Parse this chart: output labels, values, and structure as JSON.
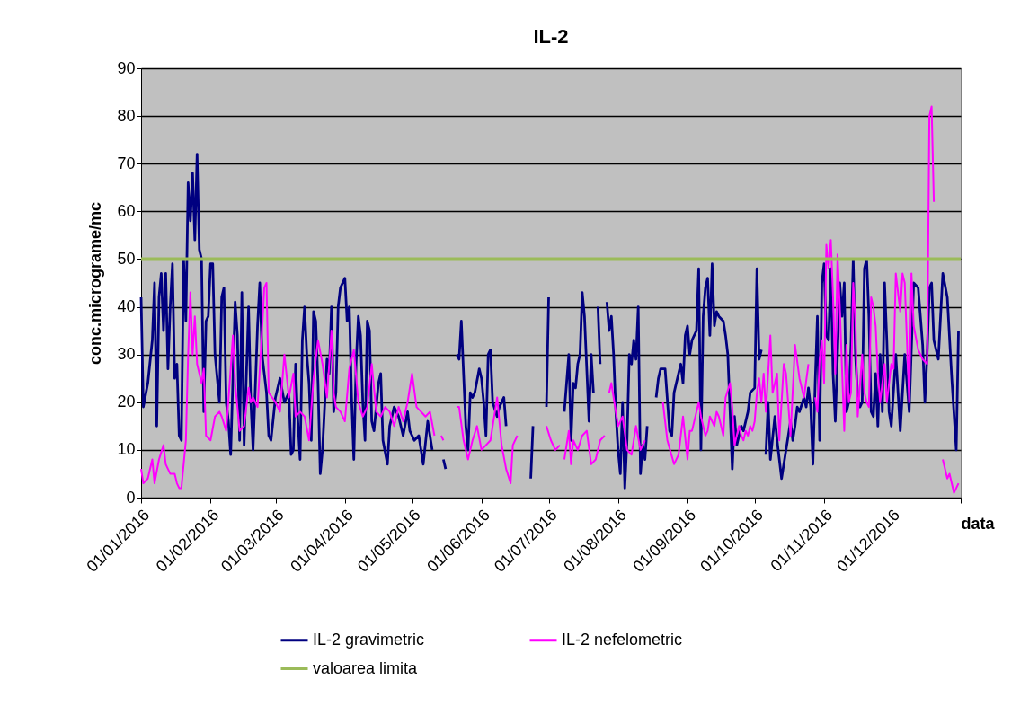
{
  "chart_data": {
    "type": "line",
    "title": "IL-2",
    "xlabel": "data",
    "ylabel": "conc.micrograme/mc",
    "xlim": [
      "2016-01-01",
      "2017-01-01"
    ],
    "xticks": [
      {
        "value": "2016-01-01",
        "label": "01/01/2016"
      },
      {
        "value": "2016-02-01",
        "label": "01/02/2016"
      },
      {
        "value": "2016-03-01",
        "label": "01/03/2016"
      },
      {
        "value": "2016-04-01",
        "label": "01/04/2016"
      },
      {
        "value": "2016-05-01",
        "label": "01/05/2016"
      },
      {
        "value": "2016-06-01",
        "label": "01/06/2016"
      },
      {
        "value": "2016-07-01",
        "label": "01/07/2016"
      },
      {
        "value": "2016-08-01",
        "label": "01/08/2016"
      },
      {
        "value": "2016-09-01",
        "label": "01/09/2016"
      },
      {
        "value": "2016-10-01",
        "label": "01/10/2016"
      },
      {
        "value": "2016-11-01",
        "label": "01/11/2016"
      },
      {
        "value": "2016-12-01",
        "label": "01/12/2016"
      },
      {
        "value": "2017-01-01",
        "label": null
      }
    ],
    "ylim": [
      0,
      90
    ],
    "yticks": [
      0,
      10,
      20,
      30,
      40,
      50,
      60,
      70,
      80,
      90
    ],
    "grid": "y",
    "legend": "bottom",
    "marker": "none",
    "line_style": "solid",
    "ref_lines": [
      {
        "axis": "y",
        "value": 50,
        "label": "valoarea limita",
        "color": "#9bbb59"
      }
    ],
    "series": [
      {
        "name": "IL-2 gravimetric",
        "color": "#000080",
        "x": [
          "2016-01-01",
          "2016-01-02",
          "2016-01-04",
          "2016-01-06",
          "2016-01-07",
          "2016-01-08",
          "2016-01-09",
          "2016-01-10",
          "2016-01-11",
          "2016-01-12",
          "2016-01-13",
          "2016-01-14",
          "2016-01-15",
          "2016-01-16",
          "2016-01-17",
          "2016-01-18",
          "2016-01-19",
          "2016-01-20",
          "2016-01-21",
          "2016-01-22",
          "2016-01-23",
          "2016-01-24",
          "2016-01-25",
          "2016-01-26",
          "2016-01-27",
          "2016-01-28",
          "2016-01-29",
          "2016-01-30",
          "2016-01-31",
          "2016-02-01",
          "2016-02-02",
          "2016-02-03",
          "2016-02-05",
          "2016-02-06",
          "2016-02-07",
          "2016-02-08",
          "2016-02-09",
          "2016-02-10",
          "2016-02-12",
          "2016-02-13",
          "2016-02-14",
          "2016-02-15",
          "2016-02-16",
          "2016-02-18",
          "2016-02-19",
          "2016-02-20",
          "2016-02-22",
          "2016-02-23",
          "2016-02-24",
          "2016-02-26",
          "2016-02-27",
          "2016-02-28",
          "2016-03-01",
          "2016-03-03",
          "2016-03-05",
          "2016-03-07",
          "2016-03-08",
          "2016-03-09",
          "2016-03-10",
          "2016-03-11",
          "2016-03-12",
          "2016-03-13",
          "2016-03-14",
          "2016-03-15",
          "2016-03-16",
          "2016-03-17",
          "2016-03-18",
          "2016-03-19",
          "2016-03-20",
          "2016-03-21",
          "2016-03-22",
          "2016-03-24",
          "2016-03-25",
          "2016-03-26",
          "2016-03-27",
          "2016-03-28",
          "2016-03-29",
          "2016-03-30",
          "2016-04-01",
          "2016-04-02",
          "2016-04-03",
          "2016-04-04",
          "2016-04-05",
          "2016-04-06",
          "2016-04-07",
          "2016-04-08",
          "2016-04-09",
          "2016-04-10",
          "2016-04-11",
          "2016-04-12",
          "2016-04-13",
          "2016-04-14",
          "2016-04-16",
          "2016-04-17",
          "2016-04-18",
          "2016-04-20",
          "2016-04-21",
          "2016-04-23",
          "2016-04-25",
          "2016-04-27",
          "2016-04-29",
          "2016-04-30",
          "2016-05-02",
          "2016-05-04",
          "2016-05-06",
          "2016-05-08",
          "2016-05-10",
          "2016-05-12",
          "2016-05-15",
          "2016-05-16",
          "2016-05-18",
          "2016-05-21",
          "2016-05-22",
          "2016-05-23",
          "2016-05-25",
          "2016-05-26",
          "2016-05-27",
          "2016-05-28",
          "2016-05-29",
          "2016-05-31",
          "2016-06-01",
          "2016-06-02",
          "2016-06-03",
          "2016-06-04",
          "2016-06-05",
          "2016-06-06",
          "2016-06-08",
          "2016-06-09",
          "2016-06-11",
          "2016-06-12",
          "2016-06-17",
          "2016-06-23",
          "2016-06-24",
          "2016-06-27",
          "2016-06-30",
          "2016-07-01",
          "2016-07-04",
          "2016-07-08",
          "2016-07-09",
          "2016-07-10",
          "2016-07-11",
          "2016-07-12",
          "2016-07-13",
          "2016-07-14",
          "2016-07-15",
          "2016-07-16",
          "2016-07-17",
          "2016-07-19",
          "2016-07-20",
          "2016-07-21",
          "2016-07-22",
          "2016-07-23",
          "2016-07-24",
          "2016-07-26",
          "2016-07-27",
          "2016-07-28",
          "2016-07-29",
          "2016-07-30",
          "2016-07-31",
          "2016-08-01",
          "2016-08-02",
          "2016-08-03",
          "2016-08-04",
          "2016-08-05",
          "2016-08-06",
          "2016-08-07",
          "2016-08-08",
          "2016-08-09",
          "2016-08-10",
          "2016-08-11",
          "2016-08-12",
          "2016-08-13",
          "2016-08-14",
          "2016-08-16",
          "2016-08-18",
          "2016-08-19",
          "2016-08-20",
          "2016-08-22",
          "2016-08-24",
          "2016-08-25",
          "2016-08-26",
          "2016-08-28",
          "2016-08-29",
          "2016-08-30",
          "2016-08-31",
          "2016-09-01",
          "2016-09-02",
          "2016-09-03",
          "2016-09-05",
          "2016-09-06",
          "2016-09-07",
          "2016-09-08",
          "2016-09-09",
          "2016-09-10",
          "2016-09-11",
          "2016-09-12",
          "2016-09-13",
          "2016-09-14",
          "2016-09-15",
          "2016-09-17",
          "2016-09-18",
          "2016-09-19",
          "2016-09-21",
          "2016-09-22",
          "2016-09-23",
          "2016-09-25",
          "2016-09-26",
          "2016-09-28",
          "2016-09-29",
          "2016-10-01",
          "2016-10-02",
          "2016-10-03",
          "2016-10-04",
          "2016-10-05",
          "2016-10-06",
          "2016-10-07",
          "2016-10-08",
          "2016-10-10",
          "2016-10-11",
          "2016-10-13",
          "2016-10-15",
          "2016-10-17",
          "2016-10-18",
          "2016-10-19",
          "2016-10-20",
          "2016-10-21",
          "2016-10-23",
          "2016-10-24",
          "2016-10-25",
          "2016-10-26",
          "2016-10-27",
          "2016-10-28",
          "2016-10-29",
          "2016-10-30",
          "2016-10-31",
          "2016-11-01",
          "2016-11-02",
          "2016-11-03",
          "2016-11-04",
          "2016-11-05",
          "2016-11-06",
          "2016-11-07",
          "2016-11-08",
          "2016-11-09",
          "2016-11-10",
          "2016-11-11",
          "2016-11-12",
          "2016-11-13",
          "2016-11-14",
          "2016-11-15",
          "2016-11-16",
          "2016-11-17",
          "2016-11-18",
          "2016-11-19",
          "2016-11-20",
          "2016-11-21",
          "2016-11-22",
          "2016-11-23",
          "2016-11-24",
          "2016-11-25",
          "2016-11-26",
          "2016-11-27",
          "2016-11-28",
          "2016-11-29",
          "2016-11-30",
          "2016-12-01",
          "2016-12-03",
          "2016-12-05",
          "2016-12-07",
          "2016-12-09",
          "2016-12-11",
          "2016-12-13",
          "2016-12-15",
          "2016-12-16",
          "2016-12-17",
          "2016-12-18",
          "2016-12-19",
          "2016-12-20",
          "2016-12-22",
          "2016-12-24",
          "2016-12-26",
          "2016-12-28",
          "2016-12-30",
          "2016-12-31"
        ],
        "values": [
          42,
          19,
          24,
          33,
          45,
          15,
          42,
          47,
          35,
          47,
          27,
          40,
          49,
          25,
          28,
          13,
          12,
          50,
          37,
          66,
          58,
          68,
          54,
          72,
          52,
          50,
          18,
          37,
          38,
          49,
          49,
          30,
          20,
          42,
          44,
          20,
          16,
          9,
          41,
          34,
          12,
          43,
          11,
          40,
          20,
          10,
          36,
          45,
          30,
          22,
          13,
          12,
          21,
          25,
          20,
          22,
          9,
          10,
          28,
          16,
          8,
          33,
          40,
          30,
          24,
          12,
          39,
          37,
          24,
          5,
          10,
          29,
          26,
          40,
          18,
          22,
          40,
          44,
          46,
          37,
          40,
          21,
          8,
          28,
          38,
          34,
          20,
          12,
          37,
          35,
          16,
          14,
          24,
          26,
          12,
          7,
          15,
          19,
          17,
          13,
          18,
          14,
          12,
          13,
          7,
          16,
          10,
          null,
          8,
          6,
          null,
          30,
          29,
          37,
          15,
          10,
          22,
          21,
          22,
          27,
          25,
          20,
          13,
          30,
          31,
          20,
          17,
          19,
          21,
          15,
          null,
          4,
          15,
          null,
          19,
          42,
          null,
          18,
          24,
          30,
          12,
          24,
          23,
          28,
          30,
          43,
          38,
          16,
          30,
          22,
          null,
          40,
          28,
          null,
          41,
          35,
          38,
          30,
          18,
          10,
          5,
          20,
          2,
          12,
          30,
          28,
          33,
          29,
          40,
          5,
          11,
          8,
          15,
          null,
          21,
          25,
          27,
          27,
          14,
          13,
          22,
          26,
          28,
          24,
          34,
          36,
          30,
          33,
          35,
          48,
          10,
          38,
          44,
          46,
          34,
          49,
          36,
          39,
          38,
          37,
          34,
          30,
          6,
          17,
          11,
          15,
          14,
          18,
          22,
          23,
          48,
          29,
          31,
          null,
          9,
          20,
          8,
          17,
          12,
          4,
          10,
          16,
          12,
          15,
          19,
          18,
          21,
          19,
          23,
          19,
          7,
          24,
          38,
          12,
          45,
          49,
          34,
          33,
          48,
          26,
          16,
          30,
          45,
          38,
          45,
          18,
          20,
          32,
          50,
          30,
          21,
          19,
          20,
          48,
          50,
          38,
          18,
          17,
          26,
          15,
          30,
          18,
          45,
          33,
          18,
          15,
          30,
          14,
          30,
          18,
          45,
          44,
          32,
          20,
          30,
          44,
          45,
          33,
          29,
          47,
          42,
          25,
          10,
          35
        ]
      },
      {
        "name": "IL-2 nefelometric",
        "color": "#ff00ff",
        "x": [
          "2016-01-01",
          "2016-01-02",
          "2016-01-04",
          "2016-01-06",
          "2016-01-07",
          "2016-01-09",
          "2016-01-11",
          "2016-01-12",
          "2016-01-14",
          "2016-01-16",
          "2016-01-17",
          "2016-01-18",
          "2016-01-19",
          "2016-01-21",
          "2016-01-22",
          "2016-01-23",
          "2016-01-24",
          "2016-01-25",
          "2016-01-26",
          "2016-01-28",
          "2016-01-29",
          "2016-01-30",
          "2016-02-01",
          "2016-02-03",
          "2016-02-05",
          "2016-02-06",
          "2016-02-08",
          "2016-02-10",
          "2016-02-11",
          "2016-02-12",
          "2016-02-14",
          "2016-02-16",
          "2016-02-18",
          "2016-02-19",
          "2016-02-20",
          "2016-02-22",
          "2016-02-24",
          "2016-02-25",
          "2016-02-26",
          "2016-02-27",
          "2016-03-01",
          "2016-03-03",
          "2016-03-05",
          "2016-03-07",
          "2016-03-09",
          "2016-03-10",
          "2016-03-12",
          "2016-03-14",
          "2016-03-16",
          "2016-03-18",
          "2016-03-20",
          "2016-03-22",
          "2016-03-24",
          "2016-03-26",
          "2016-03-27",
          "2016-03-28",
          "2016-03-30",
          "2016-04-01",
          "2016-04-03",
          "2016-04-05",
          "2016-04-07",
          "2016-04-09",
          "2016-04-11",
          "2016-04-13",
          "2016-04-15",
          "2016-04-17",
          "2016-04-19",
          "2016-04-21",
          "2016-04-23",
          "2016-04-25",
          "2016-04-27",
          "2016-04-29",
          "2016-05-01",
          "2016-05-03",
          "2016-05-05",
          "2016-05-07",
          "2016-05-09",
          "2016-05-11",
          "2016-05-12",
          "2016-05-14",
          "2016-05-15",
          "2016-05-18",
          "2016-05-21",
          "2016-05-22",
          "2016-05-24",
          "2016-05-26",
          "2016-05-28",
          "2016-05-30",
          "2016-06-01",
          "2016-06-03",
          "2016-06-05",
          "2016-06-07",
          "2016-06-08",
          "2016-06-10",
          "2016-06-12",
          "2016-06-14",
          "2016-06-15",
          "2016-06-17",
          "2016-06-24",
          "2016-06-30",
          "2016-07-02",
          "2016-07-04",
          "2016-07-06",
          "2016-07-07",
          "2016-07-08",
          "2016-07-10",
          "2016-07-11",
          "2016-07-12",
          "2016-07-14",
          "2016-07-16",
          "2016-07-18",
          "2016-07-20",
          "2016-07-22",
          "2016-07-24",
          "2016-07-26",
          "2016-07-27",
          "2016-07-28",
          "2016-07-29",
          "2016-08-01",
          "2016-08-03",
          "2016-08-05",
          "2016-08-07",
          "2016-08-09",
          "2016-08-11",
          "2016-08-13",
          "2016-08-17",
          "2016-08-21",
          "2016-08-23",
          "2016-08-26",
          "2016-08-28",
          "2016-08-30",
          "2016-09-01",
          "2016-09-02",
          "2016-09-03",
          "2016-09-05",
          "2016-09-06",
          "2016-09-07",
          "2016-09-09",
          "2016-09-10",
          "2016-09-11",
          "2016-09-13",
          "2016-09-14",
          "2016-09-15",
          "2016-09-17",
          "2016-09-18",
          "2016-09-20",
          "2016-09-21",
          "2016-09-22",
          "2016-09-24",
          "2016-09-25",
          "2016-09-26",
          "2016-09-27",
          "2016-09-28",
          "2016-09-29",
          "2016-09-30",
          "2016-10-01",
          "2016-10-02",
          "2016-10-03",
          "2016-10-04",
          "2016-10-05",
          "2016-10-06",
          "2016-10-08",
          "2016-10-09",
          "2016-10-11",
          "2016-10-12",
          "2016-10-14",
          "2016-10-15",
          "2016-10-17",
          "2016-10-19",
          "2016-10-21",
          "2016-10-23",
          "2016-10-25",
          "2016-10-27",
          "2016-10-28",
          "2016-10-29",
          "2016-10-30",
          "2016-10-31",
          "2016-11-01",
          "2016-11-02",
          "2016-11-03",
          "2016-11-04",
          "2016-11-05",
          "2016-11-06",
          "2016-11-07",
          "2016-11-08",
          "2016-11-10",
          "2016-11-11",
          "2016-11-12",
          "2016-11-13",
          "2016-11-14",
          "2016-11-15",
          "2016-11-16",
          "2016-11-18",
          "2016-11-19",
          "2016-11-20",
          "2016-11-21",
          "2016-11-22",
          "2016-11-23",
          "2016-11-24",
          "2016-11-25",
          "2016-11-26",
          "2016-11-28",
          "2016-11-29",
          "2016-12-01",
          "2016-12-02",
          "2016-12-03",
          "2016-12-05",
          "2016-12-06",
          "2016-12-07",
          "2016-12-09",
          "2016-12-10",
          "2016-12-11",
          "2016-12-13",
          "2016-12-15",
          "2016-12-17",
          "2016-12-18",
          "2016-12-19",
          "2016-12-20",
          "2016-12-22",
          "2016-12-24",
          "2016-12-26",
          "2016-12-27",
          "2016-12-29",
          "2016-12-31"
        ],
        "values": [
          6,
          3,
          4,
          8,
          3,
          8,
          11,
          7,
          5,
          5,
          3,
          2,
          2,
          12,
          30,
          43,
          30,
          38,
          28,
          24,
          27,
          13,
          12,
          17,
          18,
          17,
          14,
          27,
          34,
          24,
          14,
          15,
          23,
          20,
          21,
          19,
          35,
          44,
          45,
          22,
          20,
          18,
          30,
          21,
          26,
          17,
          18,
          17,
          12,
          25,
          33,
          28,
          21,
          35,
          22,
          19,
          18,
          16,
          27,
          31,
          20,
          17,
          19,
          28,
          18,
          17,
          19,
          18,
          15,
          19,
          16,
          20,
          26,
          19,
          18,
          17,
          18,
          13,
          null,
          13,
          12,
          null,
          19,
          19,
          12,
          8,
          12,
          15,
          10,
          11,
          12,
          18,
          21,
          11,
          6,
          3,
          11,
          13,
          null,
          15,
          12,
          10,
          11,
          null,
          8,
          14,
          7,
          12,
          10,
          13,
          14,
          7,
          8,
          12,
          13,
          null,
          22,
          24,
          15,
          17,
          10,
          9,
          15,
          10,
          12,
          null,
          20,
          12,
          7,
          9,
          17,
          8,
          14,
          14,
          18,
          20,
          17,
          13,
          14,
          17,
          15,
          18,
          17,
          13,
          21,
          24,
          19,
          11,
          15,
          13,
          12,
          14,
          13,
          15,
          14,
          16,
          22,
          25,
          20,
          26,
          18,
          34,
          22,
          26,
          12,
          28,
          26,
          13,
          32,
          25,
          21,
          28,
          null,
          21,
          18,
          29,
          33,
          24,
          53,
          48,
          54,
          42,
          26,
          51,
          40,
          14,
          32,
          20,
          22,
          45,
          37,
          17,
          30,
          22,
          20,
          19,
          42,
          40,
          36,
          26,
          20,
          28,
          20,
          28,
          27,
          47,
          39,
          47,
          45,
          20,
          47,
          36,
          31,
          29,
          28,
          80,
          82,
          62,
          null,
          8,
          4,
          5,
          1,
          3
        ]
      }
    ]
  }
}
